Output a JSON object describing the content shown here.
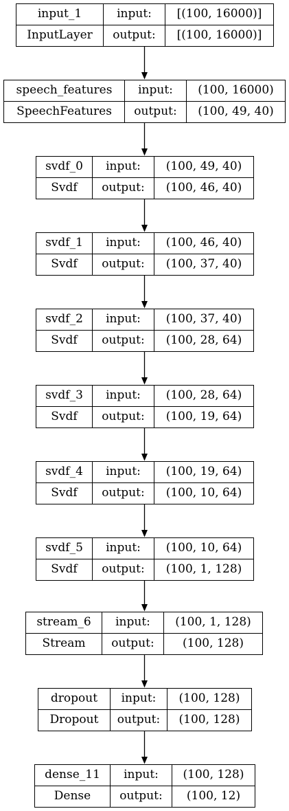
{
  "diagram": {
    "nodes": [
      {
        "name": "input_1",
        "type": "InputLayer",
        "input_label": "input:",
        "output_label": "output:",
        "input_shape": "[(100, 16000)]",
        "output_shape": "[(100, 16000)]"
      },
      {
        "name": "speech_features",
        "type": "SpeechFeatures",
        "input_label": "input:",
        "output_label": "output:",
        "input_shape": "(100, 16000)",
        "output_shape": "(100, 49, 40)"
      },
      {
        "name": "svdf_0",
        "type": "Svdf",
        "input_label": "input:",
        "output_label": "output:",
        "input_shape": "(100, 49, 40)",
        "output_shape": "(100, 46, 40)"
      },
      {
        "name": "svdf_1",
        "type": "Svdf",
        "input_label": "input:",
        "output_label": "output:",
        "input_shape": "(100, 46, 40)",
        "output_shape": "(100, 37, 40)"
      },
      {
        "name": "svdf_2",
        "type": "Svdf",
        "input_label": "input:",
        "output_label": "output:",
        "input_shape": "(100, 37, 40)",
        "output_shape": "(100, 28, 64)"
      },
      {
        "name": "svdf_3",
        "type": "Svdf",
        "input_label": "input:",
        "output_label": "output:",
        "input_shape": "(100, 28, 64)",
        "output_shape": "(100, 19, 64)"
      },
      {
        "name": "svdf_4",
        "type": "Svdf",
        "input_label": "input:",
        "output_label": "output:",
        "input_shape": "(100, 19, 64)",
        "output_shape": "(100, 10, 64)"
      },
      {
        "name": "svdf_5",
        "type": "Svdf",
        "input_label": "input:",
        "output_label": "output:",
        "input_shape": "(100, 10, 64)",
        "output_shape": "(100, 1, 128)"
      },
      {
        "name": "stream_6",
        "type": "Stream",
        "input_label": "input:",
        "output_label": "output:",
        "input_shape": "(100, 1, 128)",
        "output_shape": "(100, 128)"
      },
      {
        "name": "dropout",
        "type": "Dropout",
        "input_label": "input:",
        "output_label": "output:",
        "input_shape": "(100, 128)",
        "output_shape": "(100, 128)"
      },
      {
        "name": "dense_11",
        "type": "Dense",
        "input_label": "input:",
        "output_label": "output:",
        "input_shape": "(100, 128)",
        "output_shape": "(100, 12)"
      }
    ]
  }
}
